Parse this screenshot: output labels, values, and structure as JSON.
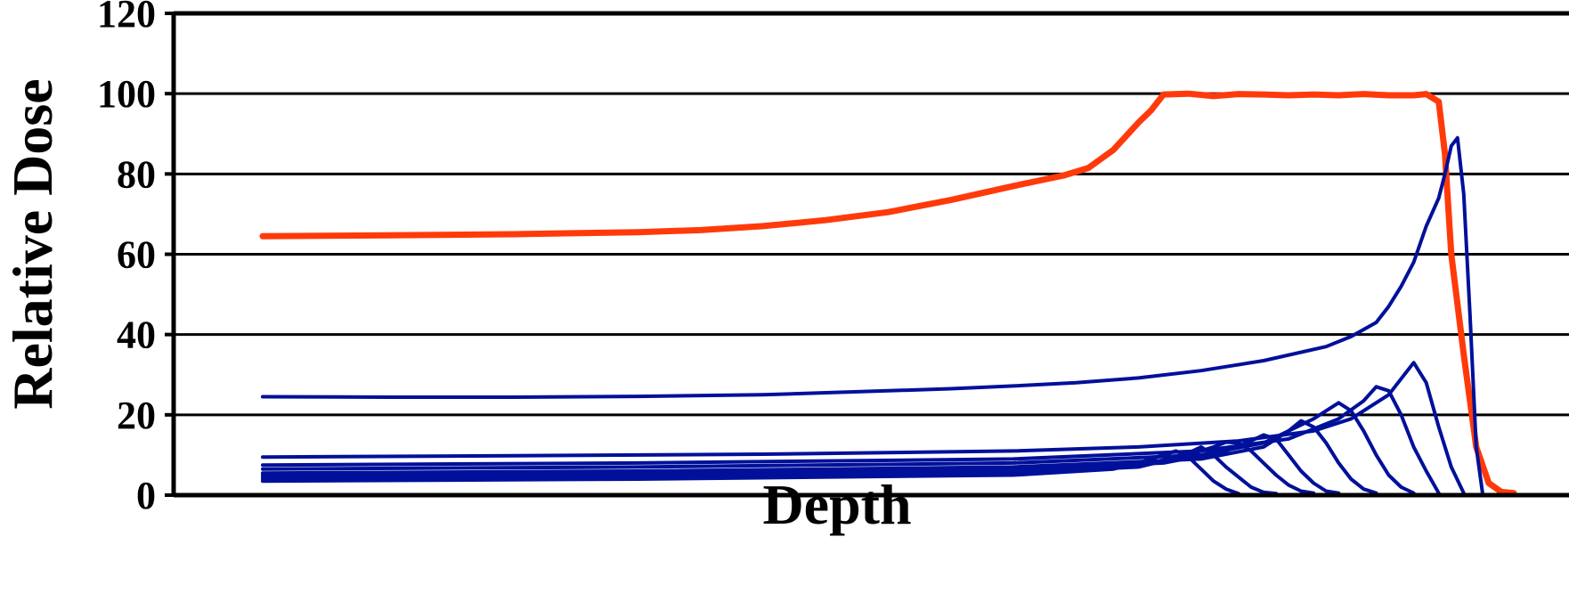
{
  "chart_data": {
    "type": "line",
    "xlabel": "Depth",
    "ylabel": "Relative Dose",
    "xlim": [
      0,
      100
    ],
    "ylim": [
      0,
      120
    ],
    "yticks": [
      0,
      20,
      40,
      60,
      80,
      100,
      120
    ],
    "grid": "horizontal",
    "legend": "none",
    "colors": {
      "sobp": "#ff3a0a",
      "pristine": "#00109a",
      "axis": "#000000"
    },
    "series": [
      {
        "x": [
          0,
          10,
          20,
          30,
          35,
          40,
          45,
          50,
          55,
          60,
          62,
          64,
          66,
          68,
          70,
          71,
          72,
          74,
          76,
          78,
          80,
          82,
          84,
          86,
          88,
          90,
          92,
          93,
          94,
          94.5,
          95,
          96,
          97,
          98,
          99,
          100
        ],
        "y": [
          64.5,
          64.7,
          65.0,
          65.5,
          66,
          67,
          68.5,
          70.5,
          73.5,
          77,
          78.3,
          79.6,
          81.5,
          86,
          92.8,
          95.8,
          99.8,
          100,
          99.4,
          99.9,
          99.8,
          99.6,
          99.8,
          99.6,
          99.9,
          99.6,
          99.6,
          99.9,
          98,
          85,
          60,
          35,
          12,
          3,
          0.8,
          0.5
        ]
      },
      {
        "x": [
          0,
          10,
          20,
          30,
          40,
          50,
          55,
          60,
          65,
          70,
          75,
          80,
          85,
          87,
          89,
          90,
          91,
          92,
          93,
          94,
          94.5,
          95,
          95.5,
          96,
          96.5,
          97,
          97.5
        ],
        "y": [
          24.5,
          24.4,
          24.4,
          24.6,
          25,
          26,
          26.5,
          27.2,
          28,
          29.2,
          31,
          33.5,
          37,
          39.5,
          43,
          47,
          52,
          58,
          67,
          74,
          80,
          87,
          89,
          75,
          45,
          12,
          0.5
        ]
      },
      {
        "x": [
          0,
          20,
          40,
          60,
          70,
          78,
          84,
          87,
          90,
          91,
          92,
          93,
          94,
          95,
          96
        ],
        "y": [
          9.5,
          9.8,
          10.2,
          11,
          12,
          13.5,
          16,
          19,
          25,
          29,
          33,
          28,
          17,
          7,
          0.5
        ]
      },
      {
        "x": [
          0,
          30,
          60,
          75,
          82,
          86,
          88,
          89,
          90,
          91,
          92,
          93,
          94
        ],
        "y": [
          7.5,
          8,
          9,
          11,
          14,
          19,
          23.5,
          27,
          26,
          20,
          12,
          6,
          0.5
        ]
      },
      {
        "x": [
          0,
          30,
          60,
          75,
          80,
          84,
          86,
          87,
          88,
          89,
          90,
          91,
          92
        ],
        "y": [
          6.5,
          7,
          8,
          10,
          13,
          19,
          23,
          21,
          16,
          10,
          5,
          2,
          0.5
        ]
      },
      {
        "x": [
          0,
          30,
          60,
          75,
          80,
          82,
          83,
          84,
          85,
          86,
          87,
          88,
          89
        ],
        "y": [
          5.5,
          6,
          7,
          9,
          12,
          16,
          18.5,
          17,
          13,
          8,
          4,
          1.5,
          0.5
        ]
      },
      {
        "x": [
          0,
          30,
          60,
          72,
          77,
          79,
          80,
          81,
          82,
          83,
          84,
          85,
          86
        ],
        "y": [
          5,
          5.5,
          6.5,
          8,
          11,
          13.5,
          15,
          14,
          10,
          6,
          3,
          1,
          0.5
        ]
      },
      {
        "x": [
          0,
          30,
          60,
          70,
          74,
          76,
          77,
          78,
          79,
          80,
          81,
          82,
          83,
          84
        ],
        "y": [
          4.5,
          5,
          6,
          7.5,
          10,
          12,
          13.2,
          13,
          11,
          8,
          5,
          2.5,
          1,
          0.5
        ]
      },
      {
        "x": [
          0,
          30,
          60,
          70,
          72,
          74,
          75,
          76,
          77,
          78,
          79,
          80,
          81
        ],
        "y": [
          4,
          4.5,
          5.5,
          7,
          8.5,
          10.5,
          12,
          10,
          7,
          4.5,
          2,
          0.7,
          0.4
        ]
      },
      {
        "x": [
          0,
          30,
          60,
          68,
          70,
          72,
          73,
          74,
          75,
          76,
          77,
          78
        ],
        "y": [
          3.5,
          4,
          5,
          6.5,
          8,
          10,
          11,
          9.5,
          6.5,
          3.5,
          1.5,
          0.4
        ]
      }
    ]
  }
}
